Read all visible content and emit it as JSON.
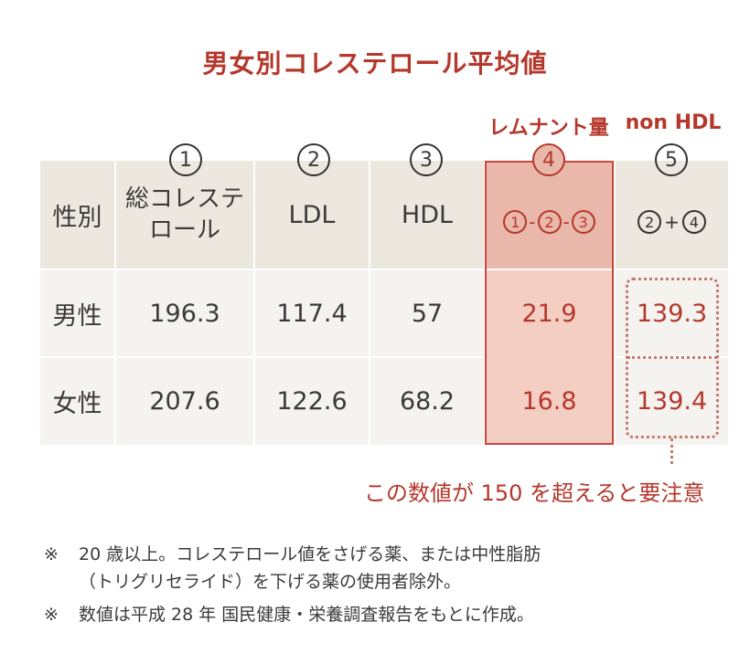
{
  "title": "男女別コレステロール平均値",
  "top_labels": {
    "remnant": "レムナント量",
    "nonhdl": "non HDL"
  },
  "col_numbers": [
    "1",
    "2",
    "3",
    "4",
    "5"
  ],
  "headers": {
    "sex": "性別",
    "total_line1": "総コレステ",
    "total_line2": "ロール",
    "ldl": "LDL",
    "hdl": "HDL",
    "remnant_formula": {
      "a": "1",
      "op1": "-",
      "b": "2",
      "op2": "-",
      "c": "3"
    },
    "nonhdl_formula": {
      "a": "2",
      "op": "+",
      "b": "4"
    }
  },
  "rows": [
    {
      "sex": "男性",
      "total": "196.3",
      "ldl": "117.4",
      "hdl": "57",
      "remnant": "21.9",
      "nonhdl": "139.3"
    },
    {
      "sex": "女性",
      "total": "207.6",
      "ldl": "122.6",
      "hdl": "68.2",
      "remnant": "16.8",
      "nonhdl": "139.4"
    }
  ],
  "warning": "この数値が 150 を超えると要注意",
  "notes": [
    {
      "mark": "※",
      "line1": "20 歳以上。コレステロール値をさげる薬、または中性脂肪",
      "line2": "（トリグリセライド）を下げる薬の使用者除外。"
    },
    {
      "mark": "※",
      "line1": "数値は平成 28 年 国民健康・栄養調査報告をもとに作成。"
    }
  ],
  "colors": {
    "accent": "#b5382c",
    "header_bg": "#ece8df",
    "body_bg": "#f5f3ef",
    "remnant_fill": "#f4cdc3"
  }
}
